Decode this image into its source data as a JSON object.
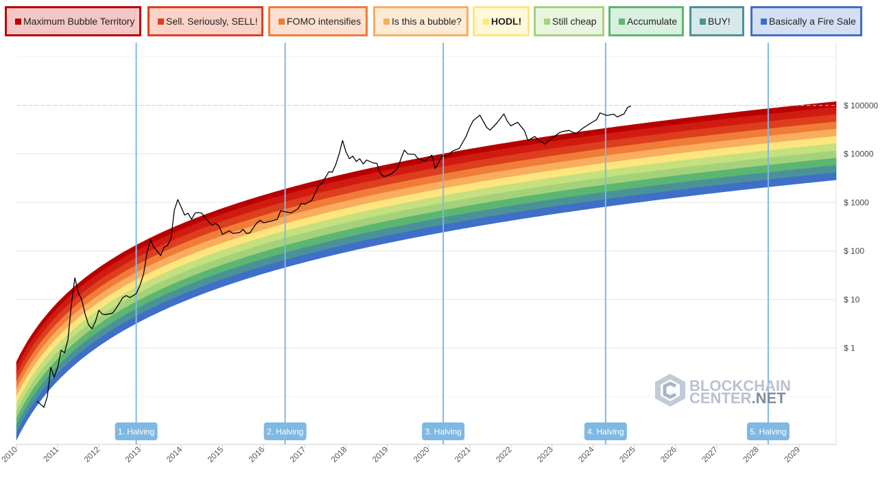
{
  "legend": [
    {
      "label": "Maximum Bubble Territory",
      "color": "#b80000",
      "bg": "#f4c6c6",
      "bold": false
    },
    {
      "label": "Sell. Seriously, SELL!",
      "color": "#dc3e1e",
      "bg": "#fbd2c8",
      "bold": false
    },
    {
      "label": "FOMO intensifies",
      "color": "#f07c38",
      "bg": "#fde0cf",
      "bold": false
    },
    {
      "label": "Is this a bubble?",
      "color": "#f9ad5f",
      "bg": "#feebd6",
      "bold": false
    },
    {
      "label": "HODL!",
      "color": "#fde67d",
      "bg": "#fff8d9",
      "bold": true
    },
    {
      "label": "Still cheap",
      "color": "#a4d27a",
      "bg": "#e9f5df",
      "bold": false
    },
    {
      "label": "Accumulate",
      "color": "#5bb672",
      "bg": "#d9efdf",
      "bold": false
    },
    {
      "label": "BUY!",
      "color": "#4a9298",
      "bg": "#d6e8ea",
      "bold": false
    },
    {
      "label": "Basically a Fire Sale",
      "color": "#3f6fc6",
      "bg": "#d4dff3",
      "bold": false
    }
  ],
  "chart_data": {
    "type": "line",
    "yscale": "log",
    "x_ticks": [
      "2010",
      "2011",
      "2012",
      "2013",
      "2014",
      "2015",
      "2016",
      "2017",
      "2018",
      "2019",
      "2020",
      "2021",
      "2022",
      "2023",
      "2024",
      "2025",
      "2026",
      "2027",
      "2028",
      "2029"
    ],
    "y_ticks": [
      {
        "value": 1,
        "label": "$ 1"
      },
      {
        "value": 10,
        "label": "$ 10"
      },
      {
        "value": 100,
        "label": "$ 100"
      },
      {
        "value": 1000,
        "label": "$ 1000"
      },
      {
        "value": 10000,
        "label": "$ 10000"
      },
      {
        "value": 100000,
        "label": "$ 100000"
      }
    ],
    "reference_line": {
      "value": 100000,
      "style": "dashed"
    },
    "bands_top_year_2010_7": 4.5,
    "bands_top_year_2029_9": 120000,
    "band_colors": [
      "#b80000",
      "#d11b11",
      "#dc3e1e",
      "#f07c38",
      "#f9ad5f",
      "#fde67d",
      "#c4e07f",
      "#a4d27a",
      "#5bb672",
      "#4a9298",
      "#3f6fc6"
    ],
    "halvings": [
      {
        "label": "1. Halving",
        "date": "2012-11-28"
      },
      {
        "label": "2. Halving",
        "date": "2016-07-09"
      },
      {
        "label": "3. Halving",
        "date": "2020-05-11"
      },
      {
        "label": "4. Halving",
        "date": "2024-04-20"
      },
      {
        "label": "5. Halving",
        "date": "2028-04"
      }
    ],
    "price_series": {
      "name": "BTC price",
      "points": [
        [
          "2010-07",
          0.08
        ],
        [
          "2010-09",
          0.06
        ],
        [
          "2010-10",
          0.1
        ],
        [
          "2010-11",
          0.4
        ],
        [
          "2010-12",
          0.25
        ],
        [
          "2011-01",
          0.4
        ],
        [
          "2011-02",
          0.9
        ],
        [
          "2011-03",
          0.8
        ],
        [
          "2011-04",
          1.5
        ],
        [
          "2011-05",
          8
        ],
        [
          "2011-06",
          28
        ],
        [
          "2011-07",
          14
        ],
        [
          "2011-08",
          10
        ],
        [
          "2011-09",
          5
        ],
        [
          "2011-10",
          3
        ],
        [
          "2011-11",
          2.5
        ],
        [
          "2011-12",
          3.5
        ],
        [
          "2012-01",
          6
        ],
        [
          "2012-02",
          5
        ],
        [
          "2012-03",
          4.9
        ],
        [
          "2012-05",
          5.2
        ],
        [
          "2012-06",
          6.5
        ],
        [
          "2012-08",
          11
        ],
        [
          "2012-09",
          12
        ],
        [
          "2012-10",
          11
        ],
        [
          "2012-11",
          12
        ],
        [
          "2012-12",
          13.5
        ],
        [
          "2013-01",
          20
        ],
        [
          "2013-02",
          33
        ],
        [
          "2013-03",
          90
        ],
        [
          "2013-04",
          170
        ],
        [
          "2013-05",
          120
        ],
        [
          "2013-06",
          100
        ],
        [
          "2013-07",
          80
        ],
        [
          "2013-08",
          120
        ],
        [
          "2013-09",
          130
        ],
        [
          "2013-10",
          180
        ],
        [
          "2013-11",
          700
        ],
        [
          "2013-12",
          1150
        ],
        [
          "2014-01",
          800
        ],
        [
          "2014-02",
          550
        ],
        [
          "2014-03",
          600
        ],
        [
          "2014-04",
          450
        ],
        [
          "2014-05",
          600
        ],
        [
          "2014-06",
          620
        ],
        [
          "2014-07",
          600
        ],
        [
          "2014-08",
          480
        ],
        [
          "2014-09",
          400
        ],
        [
          "2014-10",
          340
        ],
        [
          "2014-11",
          370
        ],
        [
          "2014-12",
          330
        ],
        [
          "2015-01",
          220
        ],
        [
          "2015-02",
          240
        ],
        [
          "2015-03",
          260
        ],
        [
          "2015-04",
          230
        ],
        [
          "2015-06",
          240
        ],
        [
          "2015-07",
          280
        ],
        [
          "2015-08",
          230
        ],
        [
          "2015-09",
          235
        ],
        [
          "2015-10",
          300
        ],
        [
          "2015-11",
          380
        ],
        [
          "2015-12",
          430
        ],
        [
          "2016-01",
          380
        ],
        [
          "2016-03",
          410
        ],
        [
          "2016-05",
          450
        ],
        [
          "2016-06",
          680
        ],
        [
          "2016-07",
          650
        ],
        [
          "2016-09",
          610
        ],
        [
          "2016-11",
          740
        ],
        [
          "2016-12",
          960
        ],
        [
          "2017-01",
          920
        ],
        [
          "2017-03",
          1100
        ],
        [
          "2017-05",
          2200
        ],
        [
          "2017-06",
          2500
        ],
        [
          "2017-08",
          4300
        ],
        [
          "2017-09",
          4200
        ],
        [
          "2017-10",
          6000
        ],
        [
          "2017-11",
          10000
        ],
        [
          "2017-12",
          19000
        ],
        [
          "2018-01",
          11000
        ],
        [
          "2018-02",
          8000
        ],
        [
          "2018-03",
          9000
        ],
        [
          "2018-04",
          7000
        ],
        [
          "2018-05",
          8000
        ],
        [
          "2018-06",
          6200
        ],
        [
          "2018-07",
          7500
        ],
        [
          "2018-09",
          6500
        ],
        [
          "2018-10",
          6400
        ],
        [
          "2018-11",
          4000
        ],
        [
          "2018-12",
          3400
        ],
        [
          "2019-02",
          3800
        ],
        [
          "2019-04",
          5000
        ],
        [
          "2019-05",
          8000
        ],
        [
          "2019-06",
          12000
        ],
        [
          "2019-07",
          10000
        ],
        [
          "2019-09",
          9800
        ],
        [
          "2019-10",
          8000
        ],
        [
          "2019-12",
          7200
        ],
        [
          "2020-02",
          9500
        ],
        [
          "2020-03",
          5000
        ],
        [
          "2020-05",
          9000
        ],
        [
          "2020-07",
          9500
        ],
        [
          "2020-08",
          11500
        ],
        [
          "2020-10",
          13000
        ],
        [
          "2020-12",
          23000
        ],
        [
          "2021-01",
          35000
        ],
        [
          "2021-02",
          48000
        ],
        [
          "2021-04",
          63000
        ],
        [
          "2021-06",
          35000
        ],
        [
          "2021-07",
          31000
        ],
        [
          "2021-09",
          44000
        ],
        [
          "2021-11",
          67000
        ],
        [
          "2021-12",
          47000
        ],
        [
          "2022-01",
          38000
        ],
        [
          "2022-03",
          45000
        ],
        [
          "2022-05",
          30000
        ],
        [
          "2022-06",
          19000
        ],
        [
          "2022-08",
          23000
        ],
        [
          "2022-09",
          19500
        ],
        [
          "2022-11",
          16000
        ],
        [
          "2023-01",
          21000
        ],
        [
          "2023-03",
          27000
        ],
        [
          "2023-04",
          29000
        ],
        [
          "2023-06",
          30500
        ],
        [
          "2023-08",
          26000
        ],
        [
          "2023-10",
          34000
        ],
        [
          "2023-12",
          42000
        ],
        [
          "2024-02",
          51000
        ],
        [
          "2024-03",
          70000
        ],
        [
          "2024-05",
          62000
        ],
        [
          "2024-07",
          66000
        ],
        [
          "2024-08",
          58000
        ],
        [
          "2024-10",
          67000
        ],
        [
          "2024-11",
          90000
        ],
        [
          "2024-12",
          98000
        ]
      ]
    }
  },
  "watermark": {
    "line1": "BLOCKCHAIN",
    "line2a": "CENTER",
    "line2b": ".NET"
  }
}
